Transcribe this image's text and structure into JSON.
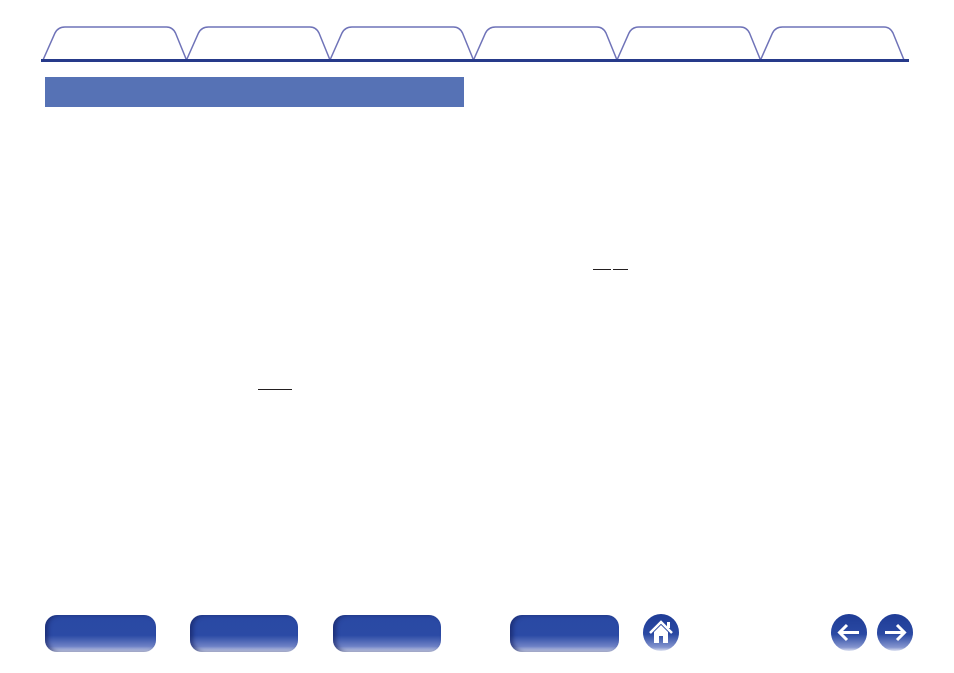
{
  "colors": {
    "tab_outline": "#6f73b8",
    "tab_baseline": "#263a8a",
    "section_bar": "#5672b5",
    "nav_button": "#2b4aa5"
  },
  "tabs": [
    {},
    {},
    {},
    {},
    {},
    {}
  ],
  "nav": {
    "buttons": [
      {},
      {},
      {},
      {}
    ],
    "home_icon": "home-icon",
    "back_icon": "arrow-left-icon",
    "forward_icon": "arrow-right-icon"
  }
}
